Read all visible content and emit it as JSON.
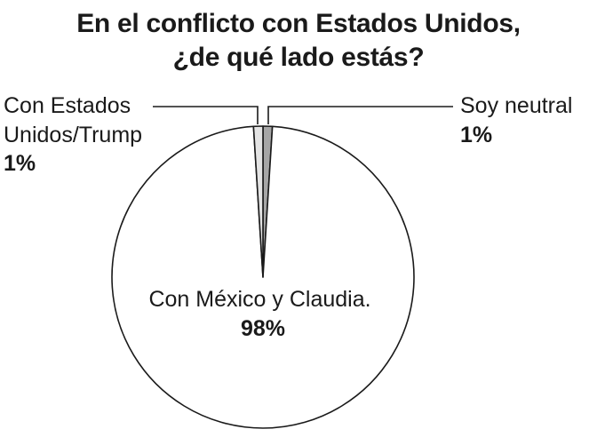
{
  "chart_data": {
    "type": "pie",
    "title_lines": [
      "En el conflicto con Estados Unidos,",
      "¿de qué lado estás?"
    ],
    "slices": [
      {
        "label_lines": [
          "Con México y Claudia."
        ],
        "value_text": "98%",
        "value": 98,
        "color": "#ffffff"
      },
      {
        "label_lines": [
          "Con Estados",
          "Unidos/Trump"
        ],
        "value_text": "1%",
        "value": 1,
        "color": "#e4e4e4"
      },
      {
        "label_lines": [
          "Soy neutral"
        ],
        "value_text": "1%",
        "value": 1,
        "color": "#a6a6a6"
      }
    ],
    "stroke_color": "#1a1a1a"
  }
}
